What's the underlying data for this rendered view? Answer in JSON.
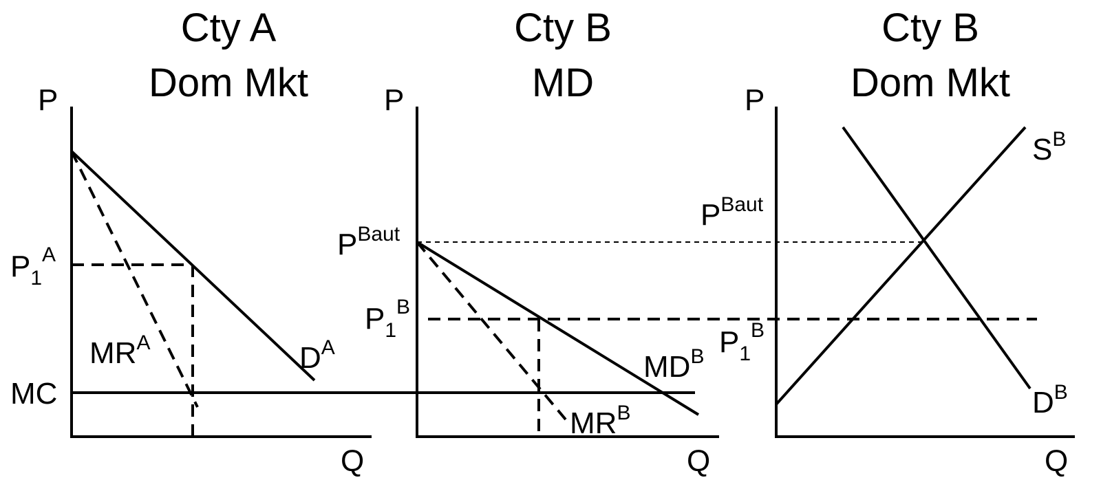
{
  "panels": [
    {
      "title": [
        "Cty A",
        "Dom Mkt"
      ],
      "y_axis": "P",
      "x_axis": "Q",
      "labels": {
        "price": {
          "base": "P",
          "sub": "1",
          "sup": "A"
        },
        "mc": "MC",
        "mr": {
          "base": "MR",
          "sup": "A"
        },
        "demand": {
          "base": "D",
          "sup": "A"
        }
      }
    },
    {
      "title": [
        "Cty B",
        "MD"
      ],
      "y_axis": "P",
      "x_axis": "Q",
      "labels": {
        "autarky": {
          "base": "P",
          "sup": "Baut"
        },
        "price": {
          "base": "P",
          "sub": "1",
          "sup": "B"
        },
        "md": {
          "base": "MD",
          "sup": "B"
        },
        "mr": {
          "base": "MR",
          "sup": "B"
        }
      }
    },
    {
      "title": [
        "Cty B",
        "Dom Mkt"
      ],
      "y_axis": "P",
      "x_axis": "Q",
      "labels": {
        "supply": {
          "base": "S",
          "sup": "B"
        },
        "demand": {
          "base": "D",
          "sup": "B"
        },
        "autarky": {
          "base": "P",
          "sup": "Baut"
        },
        "price": {
          "base": "P",
          "sub": "1",
          "sup": "B"
        }
      }
    }
  ]
}
